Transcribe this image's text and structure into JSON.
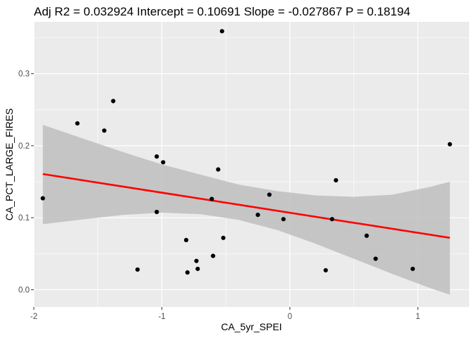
{
  "chart_data": {
    "type": "scatter",
    "title": "Adj R2 =  0.032924 Intercept = 0.10691  Slope = -0.027867  P = 0.18194",
    "xlabel": "CA_5yr_SPEI",
    "ylabel": "CA_PCT_LARGE_FIRES",
    "xlim": [
      -2.0,
      1.4
    ],
    "ylim": [
      -0.024,
      0.372
    ],
    "x_ticks": [
      -2,
      -1,
      0,
      1
    ],
    "x_tick_labels": [
      "-2",
      "-1",
      "0",
      "1"
    ],
    "y_ticks": [
      0.0,
      0.1,
      0.2,
      0.3
    ],
    "y_tick_labels": [
      "0.0",
      "0.1",
      "0.2",
      "0.3"
    ],
    "grid": true,
    "colors": {
      "panel_background": "#ebebeb",
      "grid_major": "#ffffff",
      "points": "#000000",
      "fit_line": "#ff0000",
      "confidence_band": "#bebebe"
    },
    "points": [
      {
        "x": -1.93,
        "y": 0.127
      },
      {
        "x": -1.66,
        "y": 0.231
      },
      {
        "x": -1.45,
        "y": 0.221
      },
      {
        "x": -1.38,
        "y": 0.262
      },
      {
        "x": -1.19,
        "y": 0.028
      },
      {
        "x": -1.04,
        "y": 0.185
      },
      {
        "x": -1.04,
        "y": 0.108
      },
      {
        "x": -0.99,
        "y": 0.177
      },
      {
        "x": -0.81,
        "y": 0.069
      },
      {
        "x": -0.8,
        "y": 0.024
      },
      {
        "x": -0.73,
        "y": 0.04
      },
      {
        "x": -0.72,
        "y": 0.029
      },
      {
        "x": -0.61,
        "y": 0.126
      },
      {
        "x": -0.6,
        "y": 0.047
      },
      {
        "x": -0.56,
        "y": 0.167
      },
      {
        "x": -0.53,
        "y": 0.359
      },
      {
        "x": -0.52,
        "y": 0.072
      },
      {
        "x": -0.25,
        "y": 0.104
      },
      {
        "x": -0.16,
        "y": 0.132
      },
      {
        "x": -0.05,
        "y": 0.098
      },
      {
        "x": 0.28,
        "y": 0.027
      },
      {
        "x": 0.33,
        "y": 0.098
      },
      {
        "x": 0.36,
        "y": 0.152
      },
      {
        "x": 0.6,
        "y": 0.075
      },
      {
        "x": 0.67,
        "y": 0.043
      },
      {
        "x": 0.96,
        "y": 0.029
      },
      {
        "x": 1.25,
        "y": 0.202
      }
    ],
    "fit_line": {
      "intercept": 0.10691,
      "slope": -0.027867
    },
    "confidence_band": [
      {
        "x": -1.93,
        "lower": 0.091,
        "upper": 0.229
      },
      {
        "x": -1.6,
        "lower": 0.098,
        "upper": 0.209
      },
      {
        "x": -1.3,
        "lower": 0.104,
        "upper": 0.191
      },
      {
        "x": -1.0,
        "lower": 0.107,
        "upper": 0.174
      },
      {
        "x": -0.7,
        "lower": 0.105,
        "upper": 0.16
      },
      {
        "x": -0.4,
        "lower": 0.097,
        "upper": 0.146
      },
      {
        "x": -0.1,
        "lower": 0.083,
        "upper": 0.137
      },
      {
        "x": 0.2,
        "lower": 0.064,
        "upper": 0.131
      },
      {
        "x": 0.5,
        "lower": 0.043,
        "upper": 0.129
      },
      {
        "x": 0.8,
        "lower": 0.022,
        "upper": 0.132
      },
      {
        "x": 1.1,
        "lower": 0.002,
        "upper": 0.143
      },
      {
        "x": 1.25,
        "lower": -0.007,
        "upper": 0.15
      }
    ]
  }
}
